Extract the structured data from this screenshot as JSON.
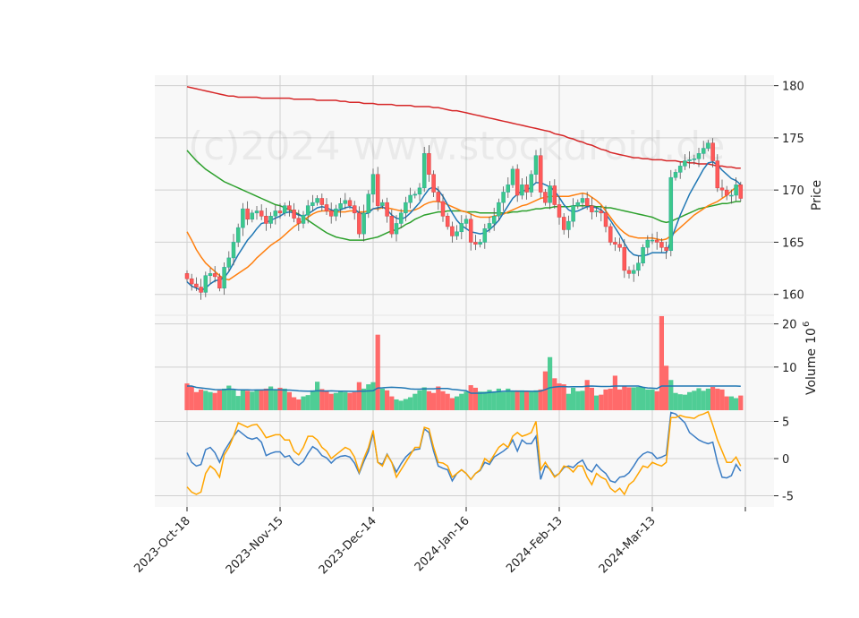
{
  "watermark": "(c)2024 www.stockdroid.de",
  "colors": {
    "up": "#26a69a",
    "up_body": "#3cc88a",
    "down": "#ff5a5a",
    "ma_short": "#1f77b4",
    "ma_mid": "#ff7f0e",
    "ma_long": "#2ca02c",
    "ma_200": "#d62728",
    "osc_a": "#3b7dc4",
    "osc_b": "#ffa500",
    "panel_bg": "#f8f8f8",
    "grid": "#d0d0d0"
  },
  "chart_data": {
    "type": "candlestick",
    "x_ticks": [
      "2023-Oct-18",
      "2023-Nov-15",
      "2023-Dec-14",
      "2024-Jan-16",
      "2024-Feb-13",
      "2024-Mar-13"
    ],
    "x_tick_index": [
      0,
      20,
      40,
      60,
      80,
      100
    ],
    "n_bars": 120,
    "price_panel": {
      "ylabel": "Price",
      "ylim": [
        158,
        181
      ],
      "yticks": [
        160,
        165,
        170,
        175,
        180
      ]
    },
    "volume_panel": {
      "ylabel": "Volume  10^6",
      "ylabel_text": "Volume",
      "ylabel_exp": "6",
      "ylabel_base": "10",
      "ylim": [
        0,
        22
      ],
      "yticks": [
        10,
        20
      ]
    },
    "osc_panel": {
      "ylim": [
        -6.5,
        6.5
      ],
      "yticks": [
        5,
        0,
        -5
      ]
    },
    "closes": [
      161.5,
      161.0,
      160.7,
      160.2,
      161.8,
      162.0,
      161.7,
      160.6,
      162.6,
      163.5,
      165.0,
      166.4,
      168.2,
      167.2,
      167.8,
      168.0,
      167.5,
      166.8,
      167.5,
      168.0,
      167.8,
      168.5,
      168.1,
      167.3,
      166.8,
      167.6,
      168.5,
      168.8,
      169.2,
      168.6,
      168.0,
      167.5,
      168.2,
      168.7,
      169.0,
      168.5,
      167.8,
      165.8,
      167.8,
      169.6,
      171.5,
      168.5,
      168.8,
      167.5,
      165.8,
      166.8,
      167.8,
      168.8,
      169.5,
      169.6,
      170.2,
      173.5,
      171.5,
      169.8,
      168.9,
      167.5,
      166.5,
      165.6,
      166.0,
      166.8,
      167.2,
      165.0,
      164.8,
      165.0,
      166.3,
      166.8,
      167.5,
      168.8,
      169.8,
      170.5,
      172.0,
      169.5,
      170.5,
      169.8,
      171.5,
      173.3,
      169.8,
      168.8,
      170.4,
      168.6,
      167.4,
      166.2,
      167.0,
      168.5,
      168.8,
      169.2,
      168.5,
      167.9,
      168.0,
      167.8,
      166.5,
      165.0,
      164.8,
      164.5,
      162.3,
      162.0,
      162.3,
      163.0,
      164.5,
      165.2,
      165.2,
      165.0,
      164.5,
      164.2,
      171.2,
      171.7,
      172.3,
      172.8,
      172.9,
      173.0,
      173.5,
      174.0,
      174.5,
      172.8,
      170.2,
      170.0,
      169.5,
      169.5,
      170.5,
      169.2
    ],
    "volumes": [
      6.2,
      5.5,
      4.2,
      4.8,
      4.5,
      4.2,
      4.0,
      4.6,
      5.0,
      5.7,
      4.7,
      3.3,
      4.7,
      4.5,
      4.3,
      4.8,
      4.8,
      5.0,
      5.5,
      4.8,
      5.2,
      5.0,
      4.2,
      3.0,
      2.5,
      3.2,
      3.5,
      4.6,
      6.6,
      4.9,
      4.6,
      3.8,
      4.0,
      4.3,
      4.2,
      4.0,
      4.2,
      6.5,
      5.0,
      6.0,
      6.5,
      17.5,
      5.0,
      4.6,
      3.2,
      2.5,
      2.2,
      2.6,
      3.0,
      3.8,
      4.6,
      5.3,
      4.4,
      4.0,
      5.5,
      4.4,
      3.8,
      2.8,
      3.2,
      3.8,
      4.3,
      5.8,
      5.2,
      4.3,
      4.3,
      4.7,
      4.3,
      5.0,
      4.2,
      5.0,
      4.4,
      4.6,
      4.6,
      4.4,
      4.4,
      4.6,
      4.8,
      9.0,
      12.3,
      7.4,
      6.2,
      6.0,
      3.8,
      5.2,
      4.4,
      4.5,
      7.0,
      5.2,
      3.4,
      3.6,
      4.8,
      5.0,
      8.0,
      4.8,
      5.5,
      5.3,
      5.3,
      5.4,
      5.3,
      4.8,
      4.8,
      4.4,
      21.8,
      10.3,
      7.0,
      4.0,
      3.7,
      3.6,
      4.2,
      4.5,
      5.1,
      4.5,
      5.0,
      5.4,
      5.0,
      4.8,
      3.2,
      3.2,
      2.8,
      3.4
    ],
    "ma_short": [
      161.2,
      160.8,
      160.6,
      160.4,
      160.6,
      161.0,
      161.3,
      161.4,
      161.6,
      162.2,
      163.0,
      163.8,
      164.5,
      165.2,
      165.7,
      166.3,
      166.8,
      166.9,
      167.1,
      167.3,
      167.5,
      167.8,
      167.9,
      167.8,
      167.6,
      167.5,
      167.7,
      168.0,
      168.3,
      168.4,
      168.3,
      168.1,
      168.0,
      168.1,
      168.3,
      168.4,
      168.2,
      167.8,
      167.7,
      167.8,
      168.2,
      168.3,
      168.4,
      168.1,
      167.6,
      167.3,
      167.2,
      167.4,
      167.8,
      168.3,
      168.8,
      169.5,
      170.1,
      170.3,
      170.0,
      169.4,
      168.6,
      167.8,
      167.1,
      166.6,
      166.3,
      166.0,
      165.9,
      165.8,
      165.9,
      166.2,
      166.6,
      167.1,
      167.8,
      168.5,
      169.2,
      169.6,
      169.9,
      170.0,
      170.3,
      170.7,
      170.7,
      170.5,
      170.3,
      169.9,
      169.3,
      168.6,
      168.1,
      167.9,
      168.0,
      168.2,
      168.4,
      168.4,
      168.3,
      168.1,
      167.7,
      167.1,
      166.4,
      165.7,
      164.9,
      164.2,
      163.8,
      163.7,
      163.7,
      163.8,
      164.0,
      164.0,
      164.0,
      164.0,
      165.2,
      166.4,
      167.6,
      168.6,
      169.6,
      170.4,
      171.2,
      172.0,
      172.6,
      172.7,
      172.4,
      171.9,
      171.5,
      171.1,
      170.9,
      170.5
    ],
    "ma_mid": [
      166.0,
      165.2,
      164.3,
      163.6,
      163.0,
      162.6,
      162.2,
      161.8,
      161.5,
      161.4,
      161.7,
      162.0,
      162.3,
      162.6,
      163.0,
      163.5,
      163.9,
      164.3,
      164.7,
      165.0,
      165.3,
      165.7,
      166.1,
      166.5,
      166.8,
      167.1,
      167.4,
      167.7,
      167.9,
      168.0,
      168.0,
      168.0,
      167.9,
      167.9,
      167.9,
      168.0,
      168.0,
      167.9,
      167.9,
      168.0,
      168.2,
      168.2,
      168.3,
      168.3,
      168.2,
      168.1,
      168.0,
      168.0,
      168.0,
      168.1,
      168.3,
      168.6,
      168.8,
      168.9,
      168.9,
      168.8,
      168.6,
      168.4,
      168.2,
      168.0,
      167.9,
      167.7,
      167.5,
      167.4,
      167.4,
      167.4,
      167.5,
      167.6,
      167.7,
      167.9,
      168.1,
      168.3,
      168.5,
      168.6,
      168.8,
      169.0,
      169.2,
      169.3,
      169.4,
      169.4,
      169.4,
      169.4,
      169.4,
      169.5,
      169.6,
      169.7,
      169.6,
      169.3,
      169.0,
      168.6,
      168.0,
      167.4,
      166.8,
      166.3,
      165.9,
      165.6,
      165.5,
      165.4,
      165.4,
      165.4,
      165.4,
      165.3,
      165.2,
      165.3,
      165.6,
      166.0,
      166.4,
      166.8,
      167.2,
      167.6,
      167.9,
      168.2,
      168.5,
      168.7,
      168.9,
      169.2,
      169.5,
      169.9,
      170.3,
      170.5
    ],
    "ma_long": [
      173.8,
      173.3,
      172.8,
      172.4,
      172.0,
      171.7,
      171.4,
      171.1,
      170.8,
      170.6,
      170.4,
      170.2,
      170.0,
      169.8,
      169.6,
      169.4,
      169.2,
      169.0,
      168.8,
      168.6,
      168.5,
      168.3,
      168.1,
      167.9,
      167.7,
      167.4,
      167.1,
      166.8,
      166.5,
      166.2,
      165.9,
      165.7,
      165.5,
      165.4,
      165.3,
      165.2,
      165.2,
      165.2,
      165.2,
      165.3,
      165.4,
      165.5,
      165.7,
      165.9,
      166.1,
      166.2,
      166.4,
      166.7,
      166.9,
      167.2,
      167.4,
      167.6,
      167.7,
      167.8,
      167.9,
      167.9,
      168.0,
      168.0,
      168.0,
      168.0,
      167.9,
      167.9,
      167.9,
      167.8,
      167.8,
      167.8,
      167.8,
      167.8,
      167.8,
      167.8,
      167.9,
      167.9,
      168.0,
      168.0,
      168.1,
      168.2,
      168.2,
      168.3,
      168.3,
      168.4,
      168.4,
      168.4,
      168.4,
      168.5,
      168.5,
      168.5,
      168.5,
      168.5,
      168.4,
      168.4,
      168.3,
      168.3,
      168.2,
      168.1,
      168.0,
      167.9,
      167.8,
      167.7,
      167.6,
      167.5,
      167.4,
      167.2,
      167.0,
      166.9,
      167.0,
      167.2,
      167.4,
      167.6,
      167.8,
      168.0,
      168.2,
      168.3,
      168.4,
      168.5,
      168.6,
      168.7,
      168.7,
      168.8,
      168.9,
      168.9
    ],
    "ma_200": [
      179.9,
      179.8,
      179.7,
      179.6,
      179.5,
      179.4,
      179.3,
      179.2,
      179.1,
      179.0,
      179.0,
      178.9,
      178.9,
      178.9,
      178.9,
      178.9,
      178.8,
      178.8,
      178.8,
      178.8,
      178.8,
      178.8,
      178.8,
      178.7,
      178.7,
      178.7,
      178.7,
      178.7,
      178.6,
      178.6,
      178.6,
      178.6,
      178.6,
      178.5,
      178.5,
      178.4,
      178.4,
      178.4,
      178.3,
      178.3,
      178.3,
      178.2,
      178.2,
      178.2,
      178.2,
      178.1,
      178.1,
      178.1,
      178.1,
      178.0,
      178.0,
      178.0,
      178.0,
      177.9,
      177.9,
      177.8,
      177.7,
      177.6,
      177.6,
      177.5,
      177.4,
      177.3,
      177.2,
      177.1,
      177.0,
      176.9,
      176.8,
      176.7,
      176.6,
      176.5,
      176.4,
      176.3,
      176.2,
      176.1,
      176.0,
      175.9,
      175.8,
      175.7,
      175.6,
      175.4,
      175.3,
      175.2,
      175.0,
      174.9,
      174.7,
      174.6,
      174.4,
      174.3,
      174.1,
      173.9,
      173.8,
      173.6,
      173.5,
      173.4,
      173.3,
      173.2,
      173.1,
      173.1,
      173.0,
      173.0,
      172.9,
      172.9,
      172.9,
      172.8,
      172.8,
      172.8,
      172.7,
      172.7,
      172.6,
      172.6,
      172.5,
      172.5,
      172.5,
      172.4,
      172.3,
      172.3,
      172.2,
      172.2,
      172.1,
      172.1
    ],
    "osc_a": [
      0.8,
      -0.5,
      -1.0,
      -0.8,
      1.2,
      1.5,
      0.8,
      -0.5,
      1.0,
      2.0,
      3.0,
      3.8,
      3.3,
      2.8,
      2.6,
      2.8,
      2.2,
      0.4,
      0.7,
      0.9,
      0.9,
      0.2,
      0.4,
      -0.5,
      -0.9,
      -0.4,
      0.7,
      1.6,
      1.2,
      0.4,
      0.1,
      -0.6,
      0.0,
      0.3,
      0.4,
      0.2,
      -0.6,
      -2.0,
      -0.4,
      1.0,
      3.5,
      -0.5,
      -0.8,
      0.6,
      -0.5,
      -1.8,
      -0.7,
      0.2,
      0.8,
      1.2,
      1.3,
      4.0,
      3.5,
      1.0,
      -1.0,
      -1.3,
      -1.5,
      -3.0,
      -2.0,
      -1.5,
      -2.0,
      -2.8,
      -2.0,
      -1.6,
      -0.5,
      -0.8,
      0.2,
      0.6,
      1.0,
      1.5,
      2.5,
      1.0,
      2.5,
      2.0,
      2.0,
      3.0,
      -2.8,
      -1.0,
      -1.4,
      -2.4,
      -2.0,
      -1.2,
      -1.0,
      -1.2,
      -0.6,
      -0.2,
      -1.4,
      -1.8,
      -0.8,
      -1.5,
      -2.0,
      -3.0,
      -3.2,
      -2.5,
      -2.4,
      -1.9,
      -1.0,
      0.0,
      0.6,
      0.9,
      0.7,
      0.0,
      0.2,
      0.5,
      6.2,
      6.0,
      5.4,
      4.8,
      3.5,
      3.0,
      2.5,
      2.2,
      2.0,
      2.2,
      -0.5,
      -2.5,
      -2.6,
      -2.3,
      -0.8,
      -1.7
    ],
    "osc_b": [
      -3.8,
      -4.5,
      -4.8,
      -4.5,
      -2.0,
      -1.0,
      -1.5,
      -2.5,
      0.5,
      1.5,
      3.0,
      4.8,
      4.5,
      4.2,
      4.5,
      4.6,
      3.8,
      2.8,
      3.0,
      3.2,
      3.2,
      2.5,
      2.5,
      1.0,
      0.5,
      1.5,
      3.0,
      3.0,
      2.5,
      1.5,
      1.0,
      0.0,
      0.5,
      1.0,
      1.5,
      1.2,
      0.2,
      -1.8,
      0.0,
      1.5,
      3.8,
      -0.5,
      -1.0,
      0.5,
      -0.5,
      -2.5,
      -1.5,
      -0.5,
      0.5,
      1.5,
      1.5,
      4.2,
      4.0,
      1.5,
      -0.5,
      -0.6,
      -1.0,
      -2.5,
      -2.0,
      -1.5,
      -2.0,
      -2.8,
      -2.0,
      -1.5,
      0.0,
      -0.5,
      0.5,
      1.5,
      2.0,
      1.5,
      3.0,
      3.5,
      3.0,
      3.2,
      3.5,
      5.0,
      -1.5,
      -0.5,
      -1.5,
      -2.5,
      -2.0,
      -1.0,
      -1.2,
      -1.8,
      -1.0,
      -1.0,
      -2.5,
      -3.5,
      -2.0,
      -2.5,
      -2.8,
      -4.0,
      -4.5,
      -4.0,
      -4.8,
      -3.5,
      -3.0,
      -2.0,
      -1.0,
      -1.2,
      -0.5,
      -0.8,
      -1.0,
      -0.5,
      5.5,
      5.5,
      5.8,
      5.6,
      5.5,
      5.4,
      5.8,
      6.0,
      6.3,
      4.5,
      2.5,
      1.0,
      -0.5,
      -0.5,
      0.2,
      -1.0
    ]
  }
}
